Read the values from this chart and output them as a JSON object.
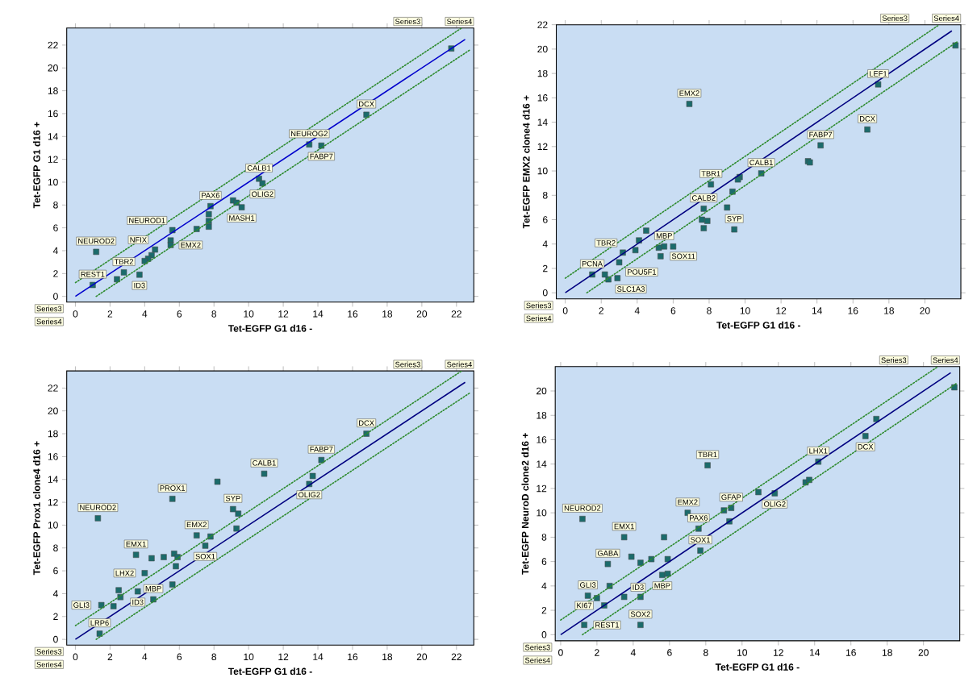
{
  "chart_data": [
    {
      "type": "scatter",
      "xlabel": "Tet-EGFP G1 d16 -",
      "ylabel": "Tet-EGFP G1 d16 +",
      "xlim": [
        -0.5,
        23
      ],
      "ylim": [
        -0.5,
        23.5
      ],
      "xticks": [
        0,
        2,
        4,
        6,
        8,
        10,
        12,
        14,
        16,
        18,
        20,
        22
      ],
      "yticks": [
        0,
        2,
        4,
        6,
        8,
        10,
        12,
        14,
        16,
        18,
        20,
        22
      ],
      "marker": "square",
      "series": [
        {
          "color": "#1b6b6b",
          "x": [
            21.7,
            16.8,
            13.5,
            14.2,
            10.6,
            10.8,
            7.8,
            9.1,
            9.3,
            9.6,
            7.7,
            7.7,
            7.7,
            5.6,
            7.0,
            5.5,
            5.5,
            4.6,
            4.4,
            4.2,
            4.0,
            1.2,
            2.8,
            3.7,
            2.4,
            1.0
          ],
          "values": [
            21.7,
            15.9,
            13.3,
            13.2,
            10.3,
            9.9,
            7.9,
            8.4,
            8.2,
            7.8,
            7.2,
            6.6,
            6.1,
            5.8,
            5.9,
            4.9,
            4.5,
            4.1,
            3.6,
            3.3,
            3.1,
            3.9,
            2.1,
            1.9,
            1.5,
            1.0
          ]
        },
        {
          "type": "line",
          "marker": "none",
          "line_style": "solid",
          "color": "#0000cc",
          "x": [
            0,
            22.5
          ],
          "values": [
            0,
            22.5
          ]
        },
        {
          "type": "line",
          "marker": "none",
          "line_style": "dotted",
          "color": "#2e8b2e",
          "x": [
            0,
            22.3
          ],
          "values": [
            1.2,
            23.5
          ]
        },
        {
          "type": "line",
          "marker": "none",
          "line_style": "dotted",
          "color": "#2e8b2e",
          "x": [
            1.2,
            22.8
          ],
          "values": [
            0,
            21.6
          ]
        }
      ],
      "annotations": [
        {
          "text": "DCX",
          "x": 16.8,
          "y": 15.9
        },
        {
          "text": "NEUROG2",
          "x": 13.5,
          "y": 13.3
        },
        {
          "text": "FABP7",
          "x": 14.2,
          "y": 13.2
        },
        {
          "text": "CALB1",
          "x": 10.6,
          "y": 10.3
        },
        {
          "text": "OLIG2",
          "x": 10.8,
          "y": 9.9
        },
        {
          "text": "PAX6",
          "x": 7.8,
          "y": 7.9
        },
        {
          "text": "MASH1",
          "x": 9.6,
          "y": 7.8
        },
        {
          "text": "NEUROD1",
          "x": 5.6,
          "y": 5.8
        },
        {
          "text": "EMX2",
          "x": 5.5,
          "y": 4.5
        },
        {
          "text": "NFIX",
          "x": 4.6,
          "y": 4.1
        },
        {
          "text": "NEUROD2",
          "x": 1.2,
          "y": 3.9
        },
        {
          "text": "TBR2",
          "x": 2.8,
          "y": 2.1
        },
        {
          "text": "ID3",
          "x": 3.7,
          "y": 1.9
        },
        {
          "text": "REST1",
          "x": 1.0,
          "y": 1.0
        },
        "Series3",
        "Series4",
        "Series3",
        "Series4"
      ]
    },
    {
      "type": "scatter",
      "xlabel": "Tet-EGFP G1 d16 -",
      "ylabel": "Tet-EGFP EMX2 clone4 d16 +",
      "xlim": [
        -0.5,
        22
      ],
      "ylim": [
        -0.5,
        22
      ],
      "xticks": [
        0,
        2,
        4,
        6,
        8,
        10,
        12,
        14,
        16,
        18,
        20
      ],
      "yticks": [
        0,
        2,
        4,
        6,
        8,
        10,
        12,
        14,
        16,
        18,
        20,
        22
      ],
      "marker": "square",
      "series": [
        {
          "color": "#1b6b6b",
          "x": [
            21.7,
            17.4,
            6.9,
            16.8,
            14.2,
            13.5,
            13.6,
            10.9,
            8.1,
            9.7,
            9.6,
            9.3,
            7.7,
            9.0,
            7.6,
            7.9,
            7.7,
            9.4,
            4.5,
            5.5,
            5.2,
            6.0,
            4.1,
            3.9,
            3.2,
            5.3,
            3.0,
            1.5,
            2.4,
            2.9,
            2.2
          ],
          "values": [
            20.3,
            17.1,
            15.5,
            13.4,
            12.1,
            10.8,
            10.7,
            9.8,
            8.9,
            9.5,
            9.3,
            8.3,
            6.9,
            7.0,
            6.0,
            5.9,
            5.3,
            5.2,
            5.1,
            3.8,
            3.7,
            3.8,
            4.3,
            3.5,
            3.3,
            3.0,
            2.5,
            1.5,
            1.1,
            1.2,
            1.5
          ]
        },
        {
          "type": "line",
          "marker": "none",
          "line_style": "solid",
          "color": "#000080",
          "x": [
            0,
            21.5
          ],
          "values": [
            0,
            21.5
          ]
        },
        {
          "type": "line",
          "marker": "none",
          "line_style": "dotted",
          "color": "#2e8b2e",
          "x": [
            0,
            20.8
          ],
          "values": [
            1.2,
            22
          ]
        },
        {
          "type": "line",
          "marker": "none",
          "line_style": "dotted",
          "color": "#2e8b2e",
          "x": [
            1.2,
            21.8
          ],
          "values": [
            0,
            20.6
          ]
        }
      ],
      "annotations": [
        {
          "text": "LEF1",
          "x": 17.4,
          "y": 17.1
        },
        {
          "text": "EMX2",
          "x": 6.9,
          "y": 15.5
        },
        {
          "text": "DCX",
          "x": 16.8,
          "y": 13.4
        },
        {
          "text": "FABP7",
          "x": 14.2,
          "y": 12.1
        },
        {
          "text": "CALB1",
          "x": 10.9,
          "y": 9.8
        },
        {
          "text": "TBR1",
          "x": 8.1,
          "y": 8.9
        },
        {
          "text": "CALB2",
          "x": 7.7,
          "y": 6.9
        },
        {
          "text": "SYP",
          "x": 9.4,
          "y": 5.2
        },
        {
          "text": "MBP",
          "x": 5.5,
          "y": 3.8
        },
        {
          "text": "TBR2",
          "x": 3.2,
          "y": 3.3
        },
        {
          "text": "SOX11",
          "x": 5.3,
          "y": 3.0
        },
        {
          "text": "POU5F1",
          "x": 3.0,
          "y": 2.5
        },
        {
          "text": "PCNA",
          "x": 1.5,
          "y": 1.5
        },
        {
          "text": "SLC1A3",
          "x": 2.4,
          "y": 1.1
        },
        "Series3",
        "Series4",
        "Series3",
        "Series4"
      ]
    },
    {
      "type": "scatter",
      "xlabel": "Tet-EGFP G1 d16 -",
      "ylabel": "Tet-EGFP Prox1 clone4 d16 +",
      "xlim": [
        -0.5,
        23
      ],
      "ylim": [
        -0.5,
        23.5
      ],
      "xticks": [
        0,
        2,
        4,
        6,
        8,
        10,
        12,
        14,
        16,
        18,
        20,
        22
      ],
      "yticks": [
        0,
        2,
        4,
        6,
        8,
        10,
        12,
        14,
        16,
        18,
        20,
        22
      ],
      "marker": "square",
      "series": [
        {
          "color": "#1b6b6b",
          "x": [
            16.8,
            14.2,
            10.9,
            13.5,
            13.7,
            8.2,
            5.6,
            9.1,
            9.4,
            9.3,
            1.3,
            7.0,
            7.8,
            7.5,
            5.1,
            5.7,
            5.9,
            5.8,
            4.4,
            3.5,
            4.0,
            5.6,
            3.6,
            2.5,
            2.6,
            1.5,
            2.2,
            4.5,
            1.4
          ],
          "values": [
            18.0,
            15.7,
            14.5,
            13.6,
            14.3,
            13.8,
            12.3,
            11.4,
            11.0,
            9.7,
            10.6,
            9.1,
            9.0,
            8.2,
            7.2,
            7.5,
            7.2,
            6.4,
            7.1,
            7.4,
            5.8,
            4.8,
            4.2,
            4.3,
            3.7,
            3.0,
            2.9,
            3.5,
            0.5
          ]
        },
        {
          "type": "line",
          "marker": "none",
          "line_style": "solid",
          "color": "#000080",
          "x": [
            0,
            22.5
          ],
          "values": [
            0,
            22.5
          ]
        },
        {
          "type": "line",
          "marker": "none",
          "line_style": "dotted",
          "color": "#2e8b2e",
          "x": [
            0,
            22.3
          ],
          "values": [
            1.2,
            23.5
          ]
        },
        {
          "type": "line",
          "marker": "none",
          "line_style": "dotted",
          "color": "#2e8b2e",
          "x": [
            1.2,
            22.8
          ],
          "values": [
            0,
            21.6
          ]
        }
      ],
      "annotations": [
        {
          "text": "DCX",
          "x": 16.8,
          "y": 18.0
        },
        {
          "text": "FABP7",
          "x": 14.2,
          "y": 15.7
        },
        {
          "text": "CALB1",
          "x": 10.9,
          "y": 14.5
        },
        {
          "text": "OLIG2",
          "x": 13.5,
          "y": 13.6
        },
        {
          "text": "PROX1",
          "x": 5.6,
          "y": 12.3
        },
        {
          "text": "SYP",
          "x": 9.1,
          "y": 11.4
        },
        {
          "text": "NEUROD2",
          "x": 1.3,
          "y": 10.6
        },
        {
          "text": "EMX2",
          "x": 7.0,
          "y": 9.1
        },
        {
          "text": "SOX1",
          "x": 7.5,
          "y": 8.2
        },
        {
          "text": "EMX1",
          "x": 3.5,
          "y": 7.4
        },
        {
          "text": "LHX2",
          "x": 4.0,
          "y": 5.8
        },
        {
          "text": "ID3",
          "x": 3.6,
          "y": 4.2
        },
        {
          "text": "GLI3",
          "x": 1.5,
          "y": 3.0
        },
        {
          "text": "MBP",
          "x": 4.5,
          "y": 3.5
        },
        {
          "text": "LRP6",
          "x": 1.4,
          "y": 0.5
        },
        "Series3",
        "Series4",
        "Series3",
        "Series4"
      ]
    },
    {
      "type": "scatter",
      "xlabel": "Tet-EGFP G1 d16 -",
      "ylabel": "Tet-EGFP NeuroD clone2 d16 +",
      "xlim": [
        -0.3,
        22
      ],
      "ylim": [
        -0.5,
        22
      ],
      "xticks": [
        0,
        2,
        4,
        6,
        8,
        10,
        12,
        14,
        16,
        18,
        20
      ],
      "yticks": [
        0,
        2,
        4,
        6,
        8,
        10,
        12,
        14,
        16,
        18,
        20
      ],
      "marker": "square",
      "series": [
        {
          "color": "#1b6b6b",
          "x": [
            21.7,
            16.8,
            17.4,
            14.2,
            13.5,
            13.7,
            8.1,
            10.9,
            11.8,
            9.4,
            9.0,
            7.0,
            1.2,
            9.3,
            7.6,
            5.7,
            3.5,
            7.7,
            2.6,
            3.9,
            5.6,
            4.4,
            5.0,
            5.9,
            5.9,
            1.5,
            2.7,
            2.0,
            3.5,
            4.4,
            2.4,
            1.3,
            4.4
          ],
          "values": [
            20.3,
            16.3,
            17.7,
            14.2,
            12.5,
            12.7,
            13.9,
            11.7,
            11.6,
            10.4,
            10.2,
            10.0,
            9.5,
            9.3,
            8.7,
            8.0,
            8.0,
            6.9,
            5.8,
            6.4,
            4.9,
            5.9,
            6.2,
            6.2,
            5.0,
            3.2,
            4.0,
            3.0,
            3.1,
            3.1,
            2.4,
            0.8,
            0.8
          ]
        },
        {
          "type": "line",
          "marker": "none",
          "line_style": "solid",
          "color": "#000080",
          "x": [
            0,
            21.5
          ],
          "values": [
            0,
            21.5
          ]
        },
        {
          "type": "line",
          "marker": "none",
          "line_style": "dotted",
          "color": "#2e8b2e",
          "x": [
            0,
            20.8
          ],
          "values": [
            1.2,
            22
          ]
        },
        {
          "type": "line",
          "marker": "none",
          "line_style": "dotted",
          "color": "#2e8b2e",
          "x": [
            1.2,
            21.8
          ],
          "values": [
            0,
            20.6
          ]
        }
      ],
      "annotations": [
        {
          "text": "DCX",
          "x": 16.8,
          "y": 16.3
        },
        {
          "text": "LHX1",
          "x": 14.2,
          "y": 14.2
        },
        {
          "text": "TBR1",
          "x": 8.1,
          "y": 13.9
        },
        {
          "text": "GFAP",
          "x": 9.4,
          "y": 10.4
        },
        {
          "text": "OLIG2",
          "x": 11.8,
          "y": 11.6
        },
        {
          "text": "EMX2",
          "x": 7.0,
          "y": 10.0
        },
        {
          "text": "NEUROD2",
          "x": 1.2,
          "y": 9.5
        },
        {
          "text": "PAX6",
          "x": 7.6,
          "y": 8.7
        },
        {
          "text": "EMX1",
          "x": 3.5,
          "y": 8.0
        },
        {
          "text": "SOX1",
          "x": 7.7,
          "y": 6.9
        },
        {
          "text": "GABA",
          "x": 2.6,
          "y": 5.8
        },
        {
          "text": "MBP",
          "x": 5.6,
          "y": 4.9
        },
        {
          "text": "GLI3",
          "x": 1.5,
          "y": 3.2
        },
        {
          "text": "ID3",
          "x": 3.5,
          "y": 3.1
        },
        {
          "text": "KI67",
          "x": 2.4,
          "y": 2.4
        },
        {
          "text": "REST1",
          "x": 1.3,
          "y": 0.8
        },
        {
          "text": "SOX2",
          "x": 4.4,
          "y": 0.8
        },
        "Series3",
        "Series4",
        "Series3",
        "Series4"
      ]
    }
  ]
}
